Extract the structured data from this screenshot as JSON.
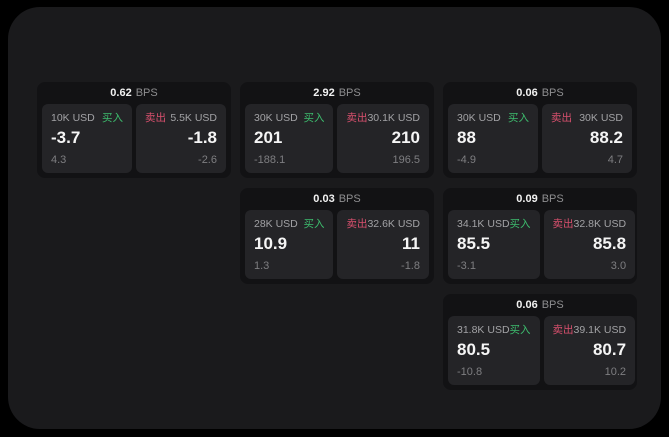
{
  "app": {
    "buy_label": "买入",
    "sell_label": "卖出",
    "bps_unit": "BPS"
  },
  "colors": {
    "window_bg": "#1a1a1c",
    "card_bg": "#121214",
    "panel_bg": "#242427",
    "buy_green": "#3dbd6e",
    "sell_red": "#d9506e",
    "price_text": "#f5f5f5",
    "muted_text": "#8e8e90"
  },
  "cards": [
    {
      "bps": "0.62",
      "bps_unit": "BPS",
      "buy": {
        "amount": "10K USD",
        "side_label": "买入",
        "price": "-3.7",
        "delta": "4.3"
      },
      "sell": {
        "side_label": "卖出",
        "amount": "5.5K USD",
        "price": "-1.8",
        "delta": "-2.6"
      }
    },
    {
      "bps": "2.92",
      "bps_unit": "BPS",
      "buy": {
        "amount": "30K USD",
        "side_label": "买入",
        "price": "201",
        "delta": "-188.1"
      },
      "sell": {
        "side_label": "卖出",
        "amount": "30.1K USD",
        "price": "210",
        "delta": "196.5"
      }
    },
    {
      "bps": "0.06",
      "bps_unit": "BPS",
      "buy": {
        "amount": "30K USD",
        "side_label": "买入",
        "price": "88",
        "delta": "-4.9"
      },
      "sell": {
        "side_label": "卖出",
        "amount": "30K USD",
        "price": "88.2",
        "delta": "4.7"
      }
    },
    {
      "bps": "0.03",
      "bps_unit": "BPS",
      "buy": {
        "amount": "28K USD",
        "side_label": "买入",
        "price": "10.9",
        "delta": "1.3"
      },
      "sell": {
        "side_label": "卖出",
        "amount": "32.6K USD",
        "price": "11",
        "delta": "-1.8"
      }
    },
    {
      "bps": "0.09",
      "bps_unit": "BPS",
      "buy": {
        "amount": "34.1K USD",
        "side_label": "买入",
        "price": "85.5",
        "delta": "-3.1"
      },
      "sell": {
        "side_label": "卖出",
        "amount": "32.8K USD",
        "price": "85.8",
        "delta": "3.0"
      }
    },
    {
      "bps": "0.06",
      "bps_unit": "BPS",
      "buy": {
        "amount": "31.8K USD",
        "side_label": "买入",
        "price": "80.5",
        "delta": "-10.8"
      },
      "sell": {
        "side_label": "卖出",
        "amount": "39.1K USD",
        "price": "80.7",
        "delta": "10.2"
      }
    }
  ]
}
